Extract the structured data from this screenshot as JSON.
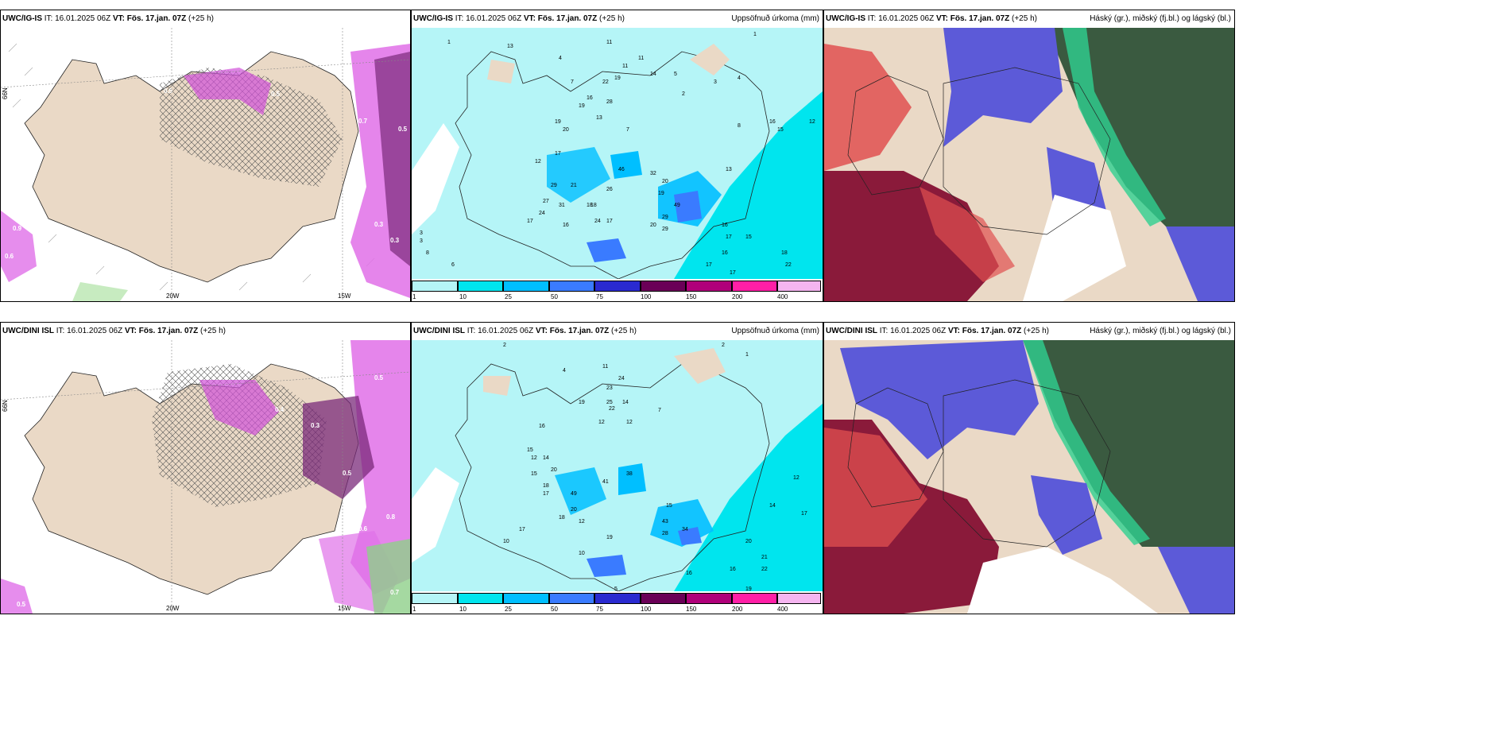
{
  "rows": [
    {
      "model": "UWC/IG-IS",
      "panels": [
        {
          "model": "UWC/IG-IS",
          "it_label": "IT: 16.01.2025 06Z",
          "vt_label": "VT: Fös. 17.jan. 07Z",
          "lead": "(+25 h)",
          "right_title": ""
        },
        {
          "model": "UWC/IG-IS",
          "it_label": "IT: 16.01.2025 06Z",
          "vt_label": "VT: Fös. 17.jan. 07Z",
          "lead": "(+25 h)",
          "right_title": "Uppsöfnuð úrkoma (mm)"
        },
        {
          "model": "UWC/IG-IS",
          "it_label": "IT: 16.01.2025 06Z",
          "vt_label": "VT: Fös. 17.jan. 07Z",
          "lead": "(+25 h)",
          "right_title": "Háský (gr.), miðský (fj.bl.) og lágský (bl.)"
        }
      ],
      "lon_labels": [
        "20W",
        "15W"
      ],
      "lat_labels": [
        "66N",
        "66N"
      ]
    },
    {
      "model": "UWC/DINI ISL",
      "panels": [
        {
          "model": "UWC/DINI ISL",
          "it_label": "IT: 16.01.2025 06Z",
          "vt_label": "VT: Fös. 17.jan. 07Z",
          "lead": "(+25 h)",
          "right_title": ""
        },
        {
          "model": "UWC/DINI ISL",
          "it_label": "IT: 16.01.2025 06Z",
          "vt_label": "VT: Fös. 17.jan. 07Z",
          "lead": "(+25 h)",
          "right_title": "Uppsöfnuð úrkoma (mm)"
        },
        {
          "model": "UWC/DINI ISL",
          "it_label": "IT: 16.01.2025 06Z",
          "vt_label": "VT: Fös. 17.jan. 07Z",
          "lead": "(+25 h)",
          "right_title": "Háský (gr.), miðský (fj.bl.) og lágský (bl.)"
        }
      ],
      "lon_labels": [
        "20W",
        "15W"
      ],
      "lat_labels": [
        "66N",
        "66N"
      ]
    }
  ],
  "precip_colorbar": {
    "ticks": [
      "1",
      "10",
      "25",
      "50",
      "75",
      "100",
      "150",
      "200",
      "400"
    ],
    "colors": [
      "#b5f5f7",
      "#00e5ee",
      "#00bfff",
      "#3a7bff",
      "#2a2ad0",
      "#6a0057",
      "#b0007a",
      "#ff1fa6",
      "#f5b5f0"
    ]
  },
  "colors": {
    "land": "#ead9c6",
    "sea": "#ffffff",
    "precip_light": "#b5f5f7",
    "precip_mid": "#00e5ee",
    "snow_magenta": "#e070e8",
    "cloud_high": "#3a5a40",
    "cloud_mid": "#5c5ad8",
    "cloud_low": "#8a1a3a",
    "cloud_red": "#e05050",
    "cloud_green": "#30d090"
  },
  "map_labels": {
    "ig_precip": [
      "1",
      "13",
      "11",
      "4",
      "3",
      "7",
      "1",
      "11",
      "11",
      "22",
      "19",
      "28",
      "16",
      "19",
      "12",
      "13",
      "7",
      "14",
      "5",
      "3",
      "2",
      "4",
      "13",
      "8",
      "12",
      "19",
      "18",
      "16",
      "15",
      "20",
      "17",
      "29",
      "21",
      "46",
      "26",
      "32",
      "20",
      "19",
      "27",
      "31",
      "18",
      "17",
      "24",
      "16",
      "24",
      "17",
      "20",
      "29",
      "49",
      "29",
      "16",
      "17",
      "15",
      "16",
      "17",
      "22",
      "18",
      "17",
      "6",
      "3",
      "8"
    ],
    "dini_precip": [
      "2",
      "2",
      "1",
      "4",
      "11",
      "24",
      "23",
      "25",
      "22",
      "14",
      "19",
      "12",
      "12",
      "7",
      "16",
      "15",
      "12",
      "14",
      "15",
      "18",
      "20",
      "17",
      "49",
      "41",
      "38",
      "20",
      "18",
      "12",
      "43",
      "34",
      "28",
      "15",
      "17",
      "10",
      "10",
      "5",
      "19",
      "16",
      "16",
      "22",
      "19",
      "20",
      "21",
      "14",
      "17",
      "12"
    ],
    "ig_snow": [
      "0.5",
      "0.5",
      "0.7",
      "0.5",
      "0.3",
      "0.9",
      "0.6",
      "0.3"
    ],
    "dini_snow": [
      "0.5",
      "0.3",
      "0.5",
      "0.6",
      "0.8",
      "0.7",
      "0.5",
      "0.4"
    ]
  }
}
